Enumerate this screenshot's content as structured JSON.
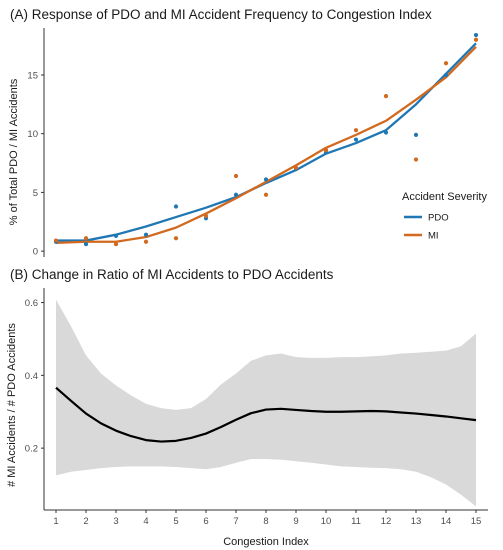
{
  "colors": {
    "pdo": "#1f77b4",
    "mi": "#d2691e",
    "band": "#d9d9d9",
    "smooth": "#000000"
  },
  "chart_data": [
    {
      "type": "scatter",
      "title": "(A) Response of PDO and MI Accident Frequency to Congestion Index",
      "xlabel": "",
      "ylabel": "% of Total PDO / MI Accidents",
      "xlim": [
        0.6,
        15.4
      ],
      "ylim": [
        -0.5,
        19
      ],
      "yticks": [
        0,
        5,
        10,
        15
      ],
      "legend": {
        "title": "Accident Severity",
        "position": "right",
        "entries": [
          "PDO",
          "MI"
        ]
      },
      "series": [
        {
          "name": "PDO",
          "points": {
            "x": [
              1,
              2,
              3,
              4,
              5,
              6,
              7,
              8,
              9,
              10,
              11,
              12,
              13,
              14,
              15
            ],
            "y": [
              0.8,
              0.6,
              1.3,
              1.4,
              3.8,
              2.8,
              4.8,
              6.1,
              7.0,
              8.4,
              9.5,
              10.1,
              9.9,
              15.0,
              18.4
            ]
          },
          "smooth": {
            "x": [
              1,
              2,
              3,
              4,
              5,
              6,
              7,
              8,
              9,
              10,
              11,
              12,
              13,
              14,
              15
            ],
            "y": [
              0.9,
              0.9,
              1.4,
              2.1,
              2.9,
              3.7,
              4.6,
              5.8,
              6.9,
              8.3,
              9.2,
              10.3,
              12.5,
              15.1,
              17.7
            ]
          }
        },
        {
          "name": "MI",
          "points": {
            "x": [
              1,
              2,
              3,
              4,
              5,
              6,
              7,
              8,
              9,
              10,
              11,
              12,
              13,
              14,
              15
            ],
            "y": [
              0.9,
              1.1,
              0.6,
              0.8,
              1.1,
              3.0,
              6.4,
              4.8,
              7.1,
              8.6,
              10.3,
              13.2,
              7.8,
              16.0,
              18.0
            ]
          },
          "smooth": {
            "x": [
              1,
              2,
              3,
              4,
              5,
              6,
              7,
              8,
              9,
              10,
              11,
              12,
              13,
              14,
              15
            ],
            "y": [
              0.7,
              0.8,
              0.8,
              1.2,
              2.0,
              3.2,
              4.5,
              5.9,
              7.3,
              8.8,
              9.9,
              11.1,
              12.9,
              14.8,
              17.4
            ]
          }
        }
      ]
    },
    {
      "type": "line",
      "title": "(B) Change in Ratio of MI Accidents to PDO Accidents",
      "xlabel": "Congestion Index",
      "ylabel": "# MI Accidents / # PDO Accidents",
      "xlim": [
        0.6,
        15.4
      ],
      "ylim": [
        0.03,
        0.64
      ],
      "xticks": [
        1,
        2,
        3,
        4,
        5,
        6,
        7,
        8,
        9,
        10,
        11,
        12,
        13,
        14,
        15
      ],
      "yticks": [
        0.2,
        0.4,
        0.6
      ],
      "series": [
        {
          "x": [
            1,
            1.5,
            2,
            2.5,
            3,
            3.5,
            4,
            4.5,
            5,
            5.5,
            6,
            6.5,
            7,
            7.5,
            8,
            8.5,
            9,
            9.5,
            10,
            10.5,
            11,
            11.5,
            12,
            12.5,
            13,
            13.5,
            14,
            14.5,
            15
          ],
          "y": [
            0.366,
            0.33,
            0.295,
            0.268,
            0.248,
            0.233,
            0.222,
            0.218,
            0.22,
            0.228,
            0.24,
            0.258,
            0.278,
            0.296,
            0.306,
            0.308,
            0.305,
            0.302,
            0.3,
            0.3,
            0.301,
            0.302,
            0.301,
            0.298,
            0.295,
            0.291,
            0.287,
            0.282,
            0.277
          ],
          "lower": [
            0.125,
            0.135,
            0.14,
            0.145,
            0.148,
            0.15,
            0.15,
            0.15,
            0.148,
            0.145,
            0.142,
            0.148,
            0.16,
            0.17,
            0.17,
            0.168,
            0.164,
            0.16,
            0.155,
            0.15,
            0.148,
            0.146,
            0.145,
            0.142,
            0.135,
            0.12,
            0.1,
            0.072,
            0.04
          ],
          "upper": [
            0.608,
            0.535,
            0.455,
            0.405,
            0.372,
            0.345,
            0.322,
            0.31,
            0.305,
            0.31,
            0.335,
            0.375,
            0.405,
            0.44,
            0.455,
            0.46,
            0.45,
            0.448,
            0.448,
            0.45,
            0.45,
            0.452,
            0.455,
            0.46,
            0.462,
            0.465,
            0.468,
            0.48,
            0.515
          ]
        }
      ]
    }
  ]
}
